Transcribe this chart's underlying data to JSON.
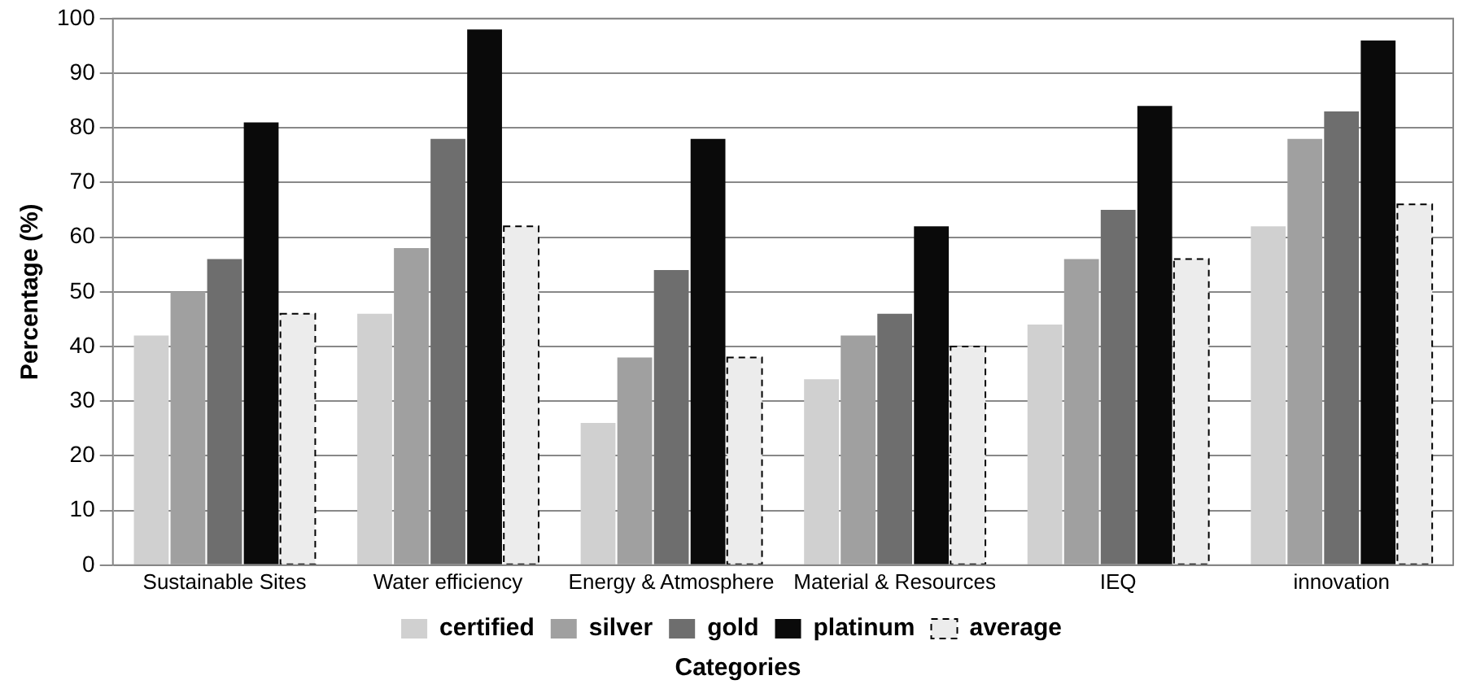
{
  "chart_data": {
    "type": "bar",
    "ylabel": "Percentage (%)",
    "xlabel": "Categories",
    "categories": [
      "Sustainable Sites",
      "Water efficiency",
      "Energy & Atmosphere",
      "Material & Resources",
      "IEQ",
      "innovation"
    ],
    "series": [
      {
        "name": "certified",
        "color": "#d0d0d0",
        "values": [
          42,
          46,
          26,
          34,
          44,
          62
        ]
      },
      {
        "name": "silver",
        "color": "#a0a0a0",
        "values": [
          50,
          58,
          38,
          42,
          56,
          78
        ]
      },
      {
        "name": "gold",
        "color": "#6e6e6e",
        "values": [
          56,
          78,
          54,
          46,
          65,
          83
        ]
      },
      {
        "name": "platinum",
        "color": "#0a0a0a",
        "values": [
          81,
          98,
          78,
          62,
          84,
          96
        ]
      },
      {
        "name": "average",
        "color": "#ececec",
        "values": [
          46,
          62,
          38,
          40,
          56,
          66
        ],
        "line_style": "dashed"
      }
    ],
    "ylim": [
      0,
      100
    ],
    "yticks": [
      0,
      10,
      20,
      30,
      40,
      50,
      60,
      70,
      80,
      90,
      100
    ],
    "grid": "y",
    "legend": "bottom"
  }
}
